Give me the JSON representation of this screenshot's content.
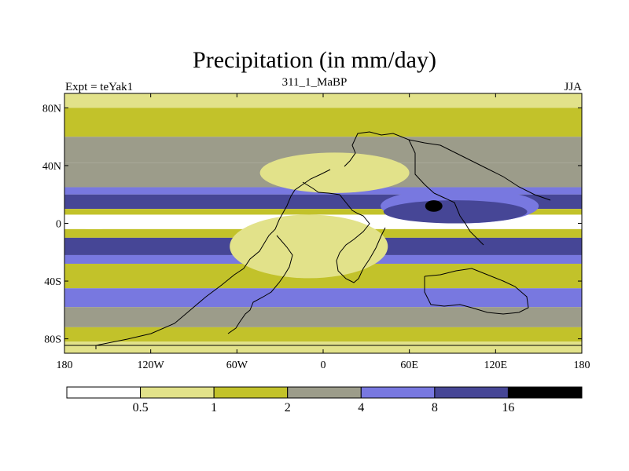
{
  "chart_data": {
    "type": "contour-map",
    "title": "Precipitation (in mm/day)",
    "left_label": "Expt = teYak1",
    "center_label": "311_1_MaBP",
    "right_label": "JJA",
    "xlim": [
      -180,
      180
    ],
    "ylim": [
      -90,
      90
    ],
    "x_ticks": [
      {
        "value": -180,
        "label": "180"
      },
      {
        "value": -120,
        "label": "120W"
      },
      {
        "value": -60,
        "label": "60W"
      },
      {
        "value": 0,
        "label": "0"
      },
      {
        "value": 60,
        "label": "60E"
      },
      {
        "value": 120,
        "label": "120E"
      },
      {
        "value": 180,
        "label": "180"
      }
    ],
    "y_ticks": [
      {
        "value": 80,
        "label": "80N"
      },
      {
        "value": 40,
        "label": "40N"
      },
      {
        "value": 0,
        "label": "0"
      },
      {
        "value": -40,
        "label": "40S"
      },
      {
        "value": -80,
        "label": "80S"
      }
    ],
    "colorbar": {
      "levels": [
        "0.5",
        "1",
        "2",
        "4",
        "8",
        "16"
      ],
      "colors": [
        "#ffffff",
        "#e2e28a",
        "#c2c22a",
        "#9c9c8a",
        "#7878e0",
        "#464696",
        "#000000"
      ]
    },
    "bands": [
      {
        "lat_top": 90,
        "lat_bottom": 80,
        "bin": 1
      },
      {
        "lat_top": 80,
        "lat_bottom": 60,
        "bin": 2
      },
      {
        "lat_top": 60,
        "lat_bottom": 42,
        "bin": 3
      },
      {
        "lat_top": 42,
        "lat_bottom": 25,
        "bin": 3
      },
      {
        "lat_top": 25,
        "lat_bottom": 20,
        "bin": 4
      },
      {
        "lat_top": 20,
        "lat_bottom": 10,
        "bin": 5
      },
      {
        "lat_top": 10,
        "lat_bottom": 6,
        "bin": 2
      },
      {
        "lat_top": 6,
        "lat_bottom": -4,
        "bin": 0
      },
      {
        "lat_top": -4,
        "lat_bottom": -10,
        "bin": 2
      },
      {
        "lat_top": -10,
        "lat_bottom": -22,
        "bin": 5
      },
      {
        "lat_top": -22,
        "lat_bottom": -28,
        "bin": 4
      },
      {
        "lat_top": -28,
        "lat_bottom": -45,
        "bin": 2
      },
      {
        "lat_top": -45,
        "lat_bottom": -58,
        "bin": 4
      },
      {
        "lat_top": -58,
        "lat_bottom": -72,
        "bin": 3
      },
      {
        "lat_top": -72,
        "lat_bottom": -82,
        "bin": 2
      },
      {
        "lat_top": -82,
        "lat_bottom": -90,
        "bin": 1
      }
    ],
    "patches": [
      {
        "bin": 0,
        "lon": -3,
        "lat": 32,
        "rlon": 28,
        "rlat": 10
      },
      {
        "bin": 1,
        "lon": 8,
        "lat": 35,
        "rlon": 52,
        "rlat": 14
      },
      {
        "bin": 0,
        "lon": -6,
        "lat": -14,
        "rlon": 30,
        "rlat": 17
      },
      {
        "bin": 1,
        "lon": -10,
        "lat": -16,
        "rlon": 55,
        "rlat": 22
      },
      {
        "bin": 4,
        "lon": 95,
        "lat": 12,
        "rlon": 55,
        "rlat": 12
      },
      {
        "bin": 5,
        "lon": 92,
        "lat": 8,
        "rlon": 50,
        "rlat": 8
      },
      {
        "bin": 6,
        "lon": 77,
        "lat": 12,
        "rlon": 6,
        "rlat": 4
      },
      {
        "bin": 0,
        "lon": 150,
        "lat": 0,
        "rlon": 25,
        "rlat": 3
      },
      {
        "bin": 0,
        "lon": -160,
        "lat": 0,
        "rlon": 25,
        "rlat": 4
      }
    ]
  }
}
